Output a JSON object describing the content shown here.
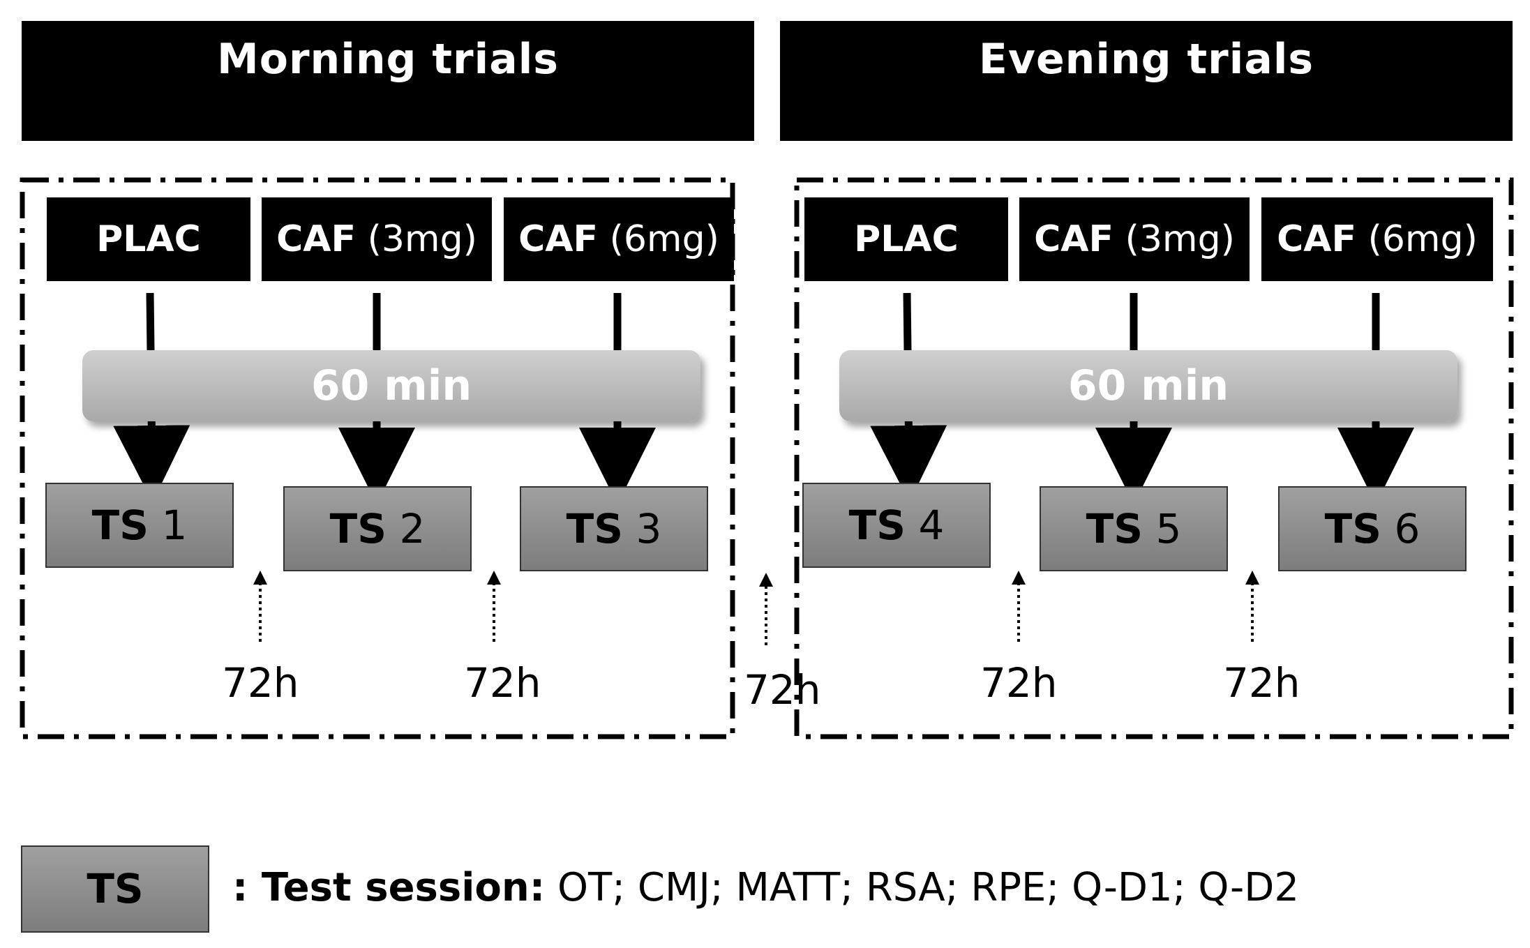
{
  "morning": {
    "title": "Morning trials",
    "conditions": [
      {
        "name": "PLAC",
        "dose": ""
      },
      {
        "name": "CAF",
        "dose": "(3mg)"
      },
      {
        "name": "CAF",
        "dose": "(6mg)"
      }
    ],
    "delay": "60 min",
    "sessions": [
      {
        "label": "TS",
        "num": "1"
      },
      {
        "label": "TS",
        "num": "2"
      },
      {
        "label": "TS",
        "num": "3"
      }
    ],
    "gaps": [
      "72h",
      "72h"
    ]
  },
  "between_gap": "72h",
  "evening": {
    "title": "Evening trials",
    "conditions": [
      {
        "name": "PLAC",
        "dose": ""
      },
      {
        "name": "CAF",
        "dose": "(3mg)"
      },
      {
        "name": "CAF",
        "dose": "(6mg)"
      }
    ],
    "delay": "60 min",
    "sessions": [
      {
        "label": "TS",
        "num": "4"
      },
      {
        "label": "TS",
        "num": "5"
      },
      {
        "label": "TS",
        "num": "6"
      }
    ],
    "gaps": [
      "72h",
      "72h"
    ]
  },
  "legend": {
    "box_label": "TS",
    "prefix": ": Test session:",
    "items": "OT; CMJ; MATT; RSA; RPE; Q-D1; Q-D2"
  }
}
